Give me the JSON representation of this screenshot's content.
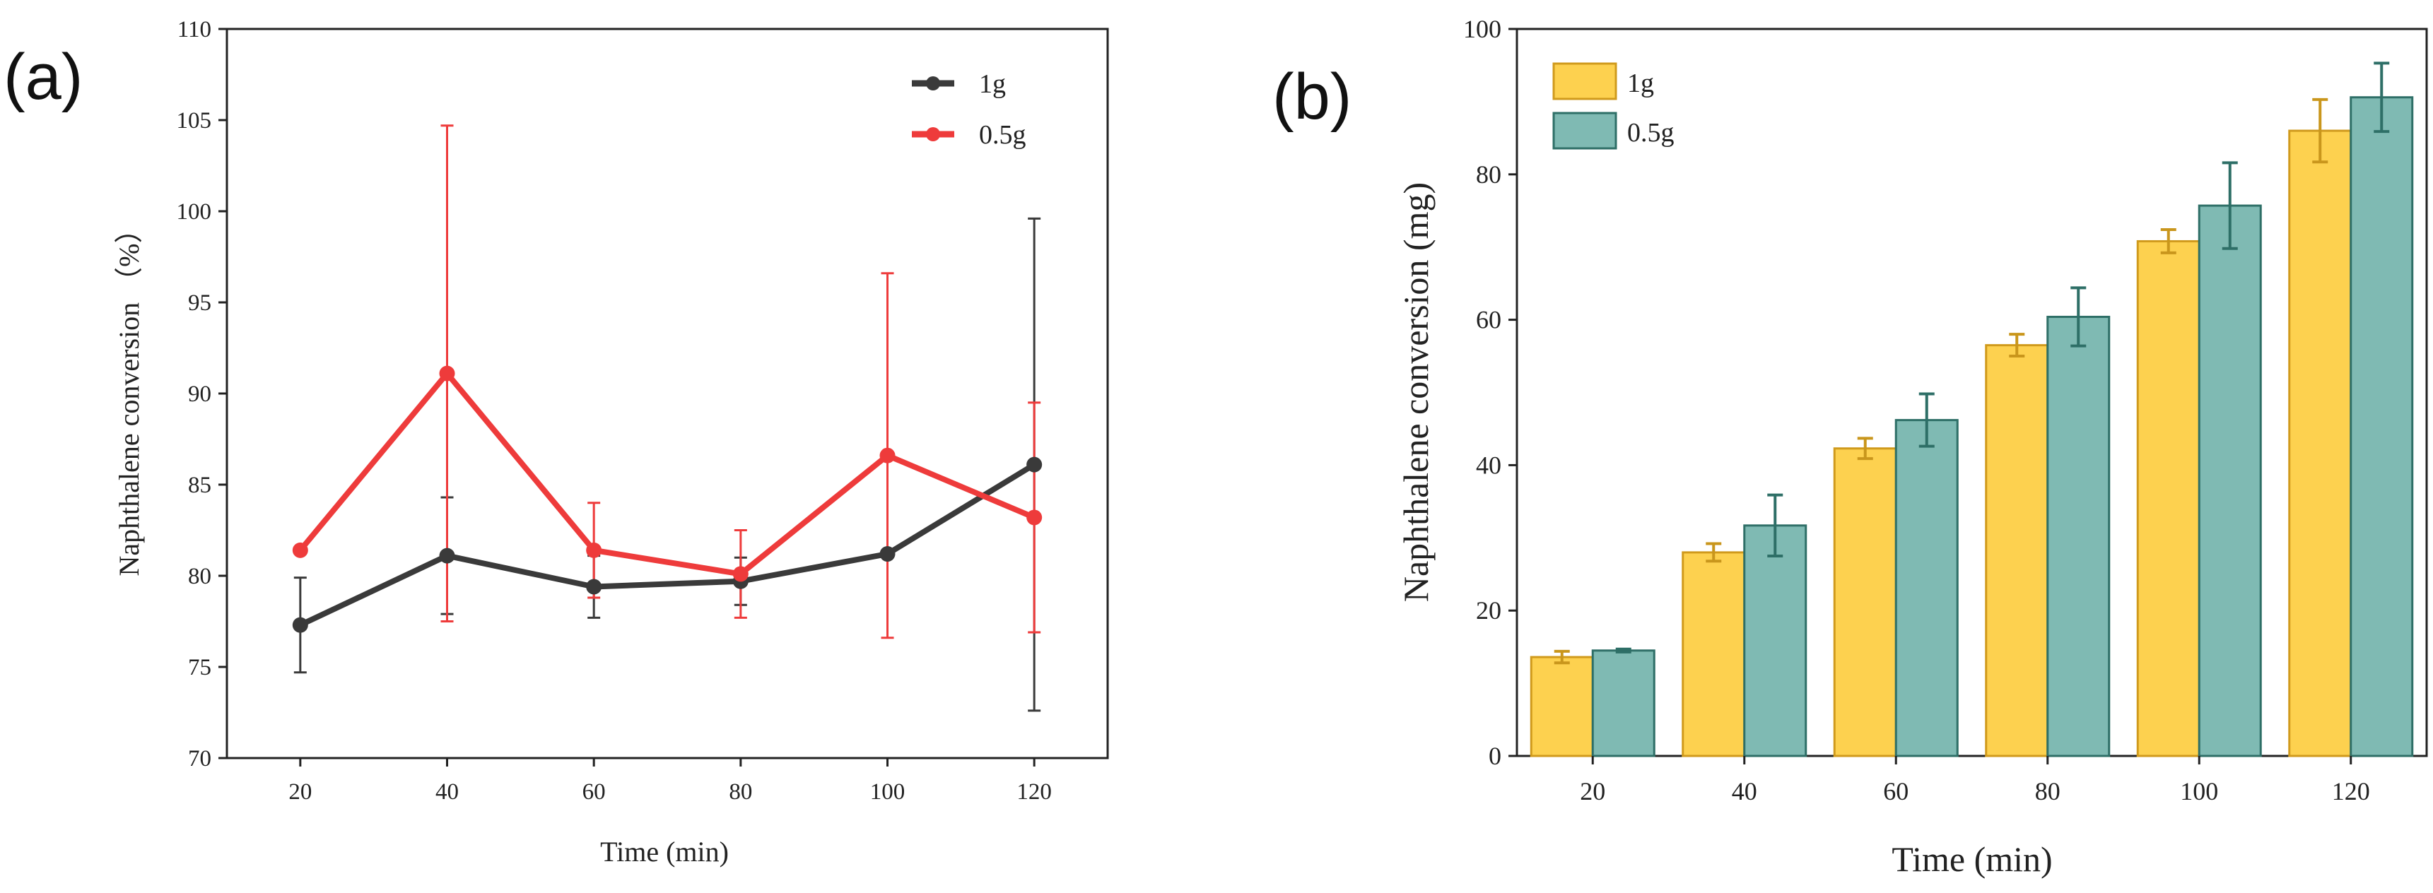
{
  "chart_data": [
    {
      "panel": "(a)",
      "type": "line",
      "x": [
        20,
        40,
        60,
        80,
        100,
        120
      ],
      "series": [
        {
          "name": "1g",
          "color": "#3a3a3a",
          "values": [
            77.3,
            81.1,
            79.4,
            79.7,
            81.2,
            86.1
          ],
          "errors": [
            2.6,
            3.2,
            1.7,
            1.3,
            0,
            13.5
          ]
        },
        {
          "name": "0.5g",
          "color": "#ee3b3b",
          "values": [
            81.4,
            91.1,
            81.4,
            80.1,
            86.6,
            83.2
          ],
          "errors": [
            0,
            13.6,
            2.6,
            2.4,
            10.0,
            6.3
          ]
        }
      ],
      "xlabel": "Time (min)",
      "ylabel": "Naphthalene conversion （%）",
      "xlim": [
        10,
        130
      ],
      "ylim": [
        70,
        110
      ],
      "yticks": [
        "70",
        "75",
        "80",
        "85",
        "90",
        "95",
        "100",
        "105",
        "110"
      ],
      "xticks": [
        "20",
        "40",
        "60",
        "80",
        "100",
        "120"
      ],
      "legend_position": "top-right"
    },
    {
      "panel": "(b)",
      "type": "bar",
      "categories": [
        "20",
        "40",
        "60",
        "80",
        "100",
        "120"
      ],
      "series": [
        {
          "name": "1g",
          "color": "#fdd14f",
          "edge": "#d09a1c",
          "errcolor": "#c9961c",
          "values": [
            13.6,
            28.0,
            42.3,
            56.5,
            70.8,
            86.0
          ],
          "errors": [
            0.8,
            1.2,
            1.4,
            1.5,
            1.6,
            4.3
          ]
        },
        {
          "name": "0.5g",
          "color": "#7fbab3",
          "edge": "#2e6f67",
          "errcolor": "#2e6f67",
          "values": [
            14.5,
            31.7,
            46.2,
            60.4,
            75.7,
            90.6
          ],
          "errors": [
            0.2,
            4.2,
            3.6,
            4.0,
            5.9,
            4.7
          ]
        }
      ],
      "xlabel": "Time (min)",
      "ylabel": "Naphthalene conversion (mg)",
      "ylim": [
        0,
        100
      ],
      "yticks": [
        "0",
        "20",
        "40",
        "60",
        "80",
        "100"
      ],
      "legend_position": "top-left"
    }
  ]
}
